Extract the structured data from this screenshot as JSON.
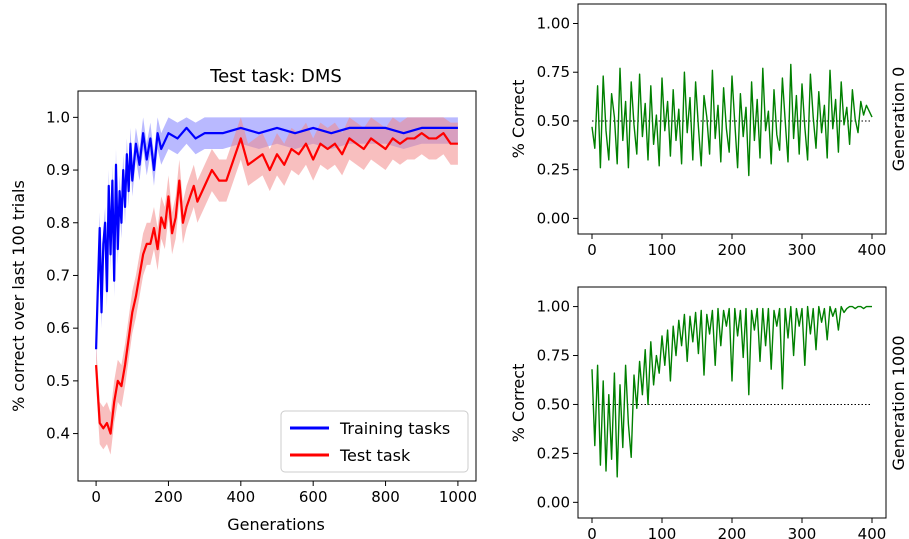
{
  "figure": {
    "background": "#ffffff"
  },
  "chart_data": [
    {
      "type": "line",
      "title": "Test task: DMS",
      "xlabel": "Generations",
      "ylabel": "% correct over last 100 trials",
      "xlim": [
        -50,
        1050
      ],
      "ylim": [
        0.31,
        1.05
      ],
      "xticks": [
        0,
        200,
        400,
        600,
        800,
        1000
      ],
      "yticks": [
        0.4,
        0.5,
        0.6,
        0.7,
        0.8,
        0.9,
        1.0
      ],
      "ytick_labels": [
        "0.4",
        "0.5",
        "0.6",
        "0.7",
        "0.8",
        "0.9",
        "1.0"
      ],
      "grid": false,
      "legend": "bottom-right",
      "series": [
        {
          "name": "Training tasks",
          "color": "#0000ff",
          "band_color": "#8080ff",
          "x": [
            0,
            5,
            10,
            15,
            20,
            25,
            30,
            35,
            40,
            45,
            50,
            55,
            60,
            65,
            70,
            75,
            80,
            85,
            90,
            95,
            100,
            110,
            120,
            130,
            140,
            150,
            160,
            170,
            180,
            200,
            225,
            250,
            275,
            300,
            350,
            400,
            450,
            500,
            550,
            600,
            650,
            700,
            750,
            800,
            850,
            900,
            950,
            1000
          ],
          "values": [
            0.56,
            0.68,
            0.79,
            0.63,
            0.76,
            0.8,
            0.67,
            0.87,
            0.74,
            0.88,
            0.69,
            0.91,
            0.75,
            0.86,
            0.8,
            0.9,
            0.83,
            0.93,
            0.86,
            0.95,
            0.88,
            0.95,
            0.91,
            0.97,
            0.92,
            0.96,
            0.9,
            0.97,
            0.94,
            0.97,
            0.96,
            0.98,
            0.96,
            0.97,
            0.97,
            0.98,
            0.97,
            0.98,
            0.97,
            0.98,
            0.97,
            0.98,
            0.98,
            0.98,
            0.97,
            0.98,
            0.98,
            0.98
          ],
          "band_width": 0.03
        },
        {
          "name": "Test task",
          "color": "#ff0000",
          "band_color": "#f28b8b",
          "x": [
            0,
            10,
            20,
            30,
            40,
            50,
            60,
            70,
            80,
            90,
            100,
            110,
            120,
            130,
            140,
            150,
            160,
            170,
            180,
            190,
            200,
            210,
            220,
            230,
            240,
            250,
            260,
            270,
            280,
            300,
            320,
            340,
            360,
            380,
            400,
            420,
            440,
            460,
            480,
            500,
            520,
            540,
            560,
            580,
            600,
            620,
            640,
            660,
            680,
            700,
            720,
            740,
            760,
            780,
            800,
            820,
            840,
            860,
            880,
            900,
            920,
            940,
            960,
            980,
            1000
          ],
          "values": [
            0.53,
            0.42,
            0.41,
            0.42,
            0.4,
            0.46,
            0.5,
            0.49,
            0.53,
            0.58,
            0.63,
            0.66,
            0.7,
            0.74,
            0.76,
            0.76,
            0.79,
            0.75,
            0.81,
            0.79,
            0.85,
            0.78,
            0.81,
            0.88,
            0.8,
            0.83,
            0.85,
            0.87,
            0.84,
            0.87,
            0.9,
            0.88,
            0.88,
            0.92,
            0.96,
            0.91,
            0.92,
            0.93,
            0.9,
            0.93,
            0.91,
            0.94,
            0.93,
            0.95,
            0.92,
            0.95,
            0.94,
            0.95,
            0.93,
            0.96,
            0.95,
            0.94,
            0.96,
            0.95,
            0.94,
            0.96,
            0.95,
            0.96,
            0.96,
            0.97,
            0.96,
            0.96,
            0.97,
            0.95,
            0.95
          ],
          "band_width": 0.04
        }
      ]
    },
    {
      "type": "line",
      "xlabel": "",
      "ylabel": "% Correct",
      "right_label": "Generation 0",
      "xlim": [
        -20,
        420
      ],
      "ylim": [
        -0.08,
        1.1
      ],
      "xticks": [
        0,
        100,
        200,
        300,
        400
      ],
      "yticks": [
        0.0,
        0.25,
        0.5,
        0.75,
        1.0
      ],
      "ytick_labels": [
        "0.00",
        "0.25",
        "0.50",
        "0.75",
        "1.00"
      ],
      "reference_line": 0.5,
      "grid": false,
      "series": [
        {
          "color": "#008000",
          "x": [
            0,
            4,
            8,
            12,
            16,
            20,
            24,
            28,
            32,
            36,
            40,
            44,
            48,
            52,
            56,
            60,
            64,
            68,
            72,
            76,
            80,
            84,
            88,
            92,
            96,
            100,
            104,
            108,
            112,
            116,
            120,
            124,
            128,
            132,
            136,
            140,
            144,
            148,
            152,
            156,
            160,
            164,
            168,
            172,
            176,
            180,
            184,
            188,
            192,
            196,
            200,
            204,
            208,
            212,
            216,
            220,
            224,
            228,
            232,
            236,
            240,
            244,
            248,
            252,
            256,
            260,
            264,
            268,
            272,
            276,
            280,
            284,
            288,
            292,
            296,
            300,
            304,
            308,
            312,
            316,
            320,
            324,
            328,
            332,
            336,
            340,
            344,
            348,
            352,
            356,
            360,
            364,
            368,
            372,
            376,
            380,
            384,
            388,
            392,
            396,
            400
          ],
          "values": [
            0.47,
            0.36,
            0.68,
            0.26,
            0.73,
            0.45,
            0.3,
            0.64,
            0.52,
            0.28,
            0.77,
            0.4,
            0.6,
            0.26,
            0.7,
            0.48,
            0.33,
            0.74,
            0.42,
            0.59,
            0.3,
            0.68,
            0.38,
            0.53,
            0.27,
            0.72,
            0.45,
            0.6,
            0.32,
            0.66,
            0.4,
            0.56,
            0.28,
            0.75,
            0.44,
            0.62,
            0.3,
            0.7,
            0.47,
            0.27,
            0.63,
            0.52,
            0.33,
            0.76,
            0.41,
            0.58,
            0.29,
            0.67,
            0.46,
            0.34,
            0.73,
            0.49,
            0.26,
            0.64,
            0.42,
            0.57,
            0.22,
            0.7,
            0.4,
            0.61,
            0.31,
            0.77,
            0.45,
            0.55,
            0.28,
            0.66,
            0.43,
            0.35,
            0.72,
            0.5,
            0.29,
            0.79,
            0.41,
            0.63,
            0.33,
            0.69,
            0.47,
            0.3,
            0.74,
            0.52,
            0.36,
            0.65,
            0.44,
            0.58,
            0.31,
            0.76,
            0.46,
            0.61,
            0.34,
            0.7,
            0.48,
            0.57,
            0.38,
            0.66,
            0.51,
            0.44,
            0.6,
            0.53,
            0.58,
            0.55,
            0.52
          ]
        }
      ]
    },
    {
      "type": "line",
      "xlabel": "",
      "ylabel": "% Correct",
      "right_label": "Generation 1000",
      "xlim": [
        -20,
        420
      ],
      "ylim": [
        -0.08,
        1.1
      ],
      "xticks": [
        0,
        100,
        200,
        300,
        400
      ],
      "yticks": [
        0.0,
        0.25,
        0.5,
        0.75,
        1.0
      ],
      "ytick_labels": [
        "0.00",
        "0.25",
        "0.50",
        "0.75",
        "1.00"
      ],
      "reference_line": 0.5,
      "grid": false,
      "series": [
        {
          "color": "#008000",
          "x": [
            0,
            4,
            8,
            12,
            16,
            20,
            24,
            28,
            32,
            36,
            40,
            44,
            48,
            52,
            56,
            60,
            64,
            68,
            72,
            76,
            80,
            84,
            88,
            92,
            96,
            100,
            104,
            108,
            112,
            116,
            120,
            124,
            128,
            132,
            136,
            140,
            144,
            148,
            152,
            156,
            160,
            164,
            168,
            172,
            176,
            180,
            184,
            188,
            192,
            196,
            200,
            204,
            208,
            212,
            216,
            220,
            224,
            228,
            232,
            236,
            240,
            244,
            248,
            252,
            256,
            260,
            264,
            268,
            272,
            276,
            280,
            284,
            288,
            292,
            296,
            300,
            304,
            308,
            312,
            316,
            320,
            324,
            328,
            332,
            336,
            340,
            344,
            348,
            352,
            356,
            360,
            364,
            368,
            372,
            376,
            380,
            384,
            388,
            392,
            396,
            400
          ],
          "values": [
            0.68,
            0.29,
            0.7,
            0.19,
            0.62,
            0.16,
            0.55,
            0.22,
            0.66,
            0.13,
            0.6,
            0.28,
            0.7,
            0.4,
            0.23,
            0.65,
            0.48,
            0.72,
            0.55,
            0.78,
            0.5,
            0.82,
            0.6,
            0.75,
            0.66,
            0.85,
            0.7,
            0.88,
            0.62,
            0.9,
            0.75,
            0.93,
            0.8,
            0.96,
            0.72,
            0.95,
            0.82,
            0.97,
            0.76,
            0.98,
            0.65,
            0.96,
            0.86,
            0.98,
            0.7,
            0.99,
            0.8,
            0.98,
            0.9,
            0.99,
            0.62,
            0.99,
            0.85,
            0.98,
            0.74,
            0.99,
            0.55,
            0.98,
            0.88,
            0.99,
            0.72,
            0.99,
            0.8,
            0.99,
            0.68,
            0.98,
            0.9,
            0.99,
            0.58,
            0.99,
            0.84,
            1.0,
            0.75,
            0.99,
            0.9,
            0.99,
            0.7,
            1.0,
            0.86,
            0.99,
            0.78,
            1.0,
            0.92,
            0.99,
            0.83,
            1.0,
            0.95,
            0.99,
            0.88,
            1.0,
            0.97,
            0.99,
            1.0,
            1.0,
            0.99,
            1.0,
            1.0,
            0.99,
            1.0,
            1.0,
            1.0
          ]
        }
      ]
    }
  ]
}
